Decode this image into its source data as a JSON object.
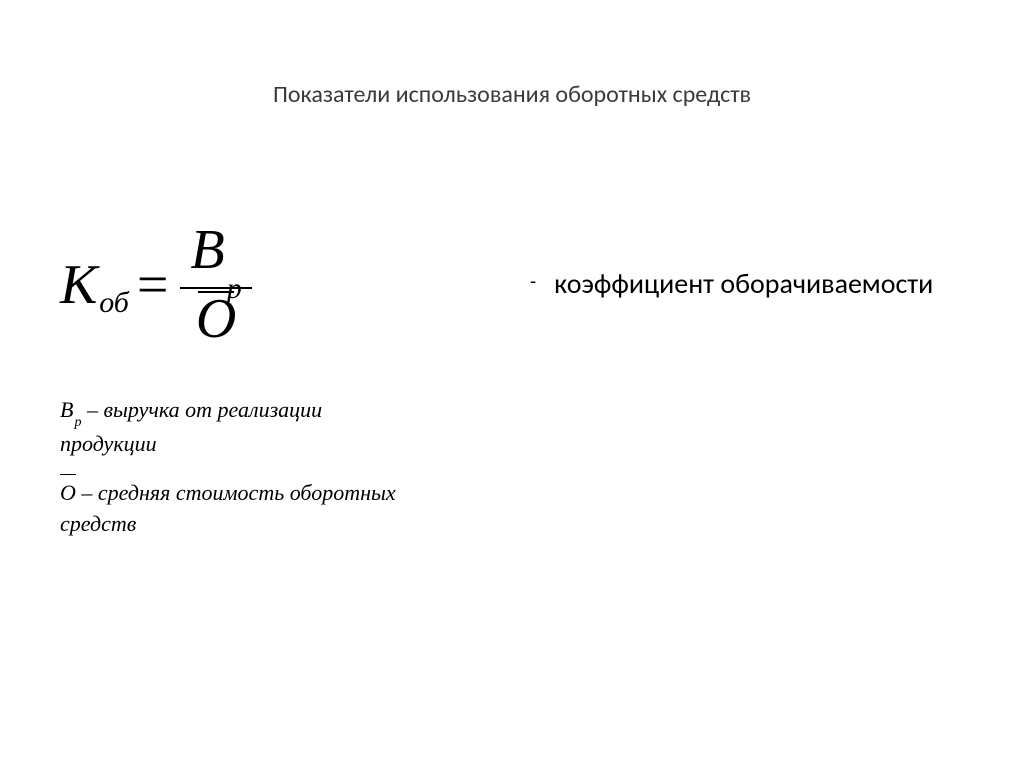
{
  "title": "Показатели использования оборотных средств",
  "formula": {
    "lhs_main": "К",
    "lhs_sub": "об",
    "equals": "=",
    "num_main": "В",
    "num_sub": "р",
    "den_main": "О"
  },
  "definitions": {
    "bp_var": "В",
    "bp_sub": "р",
    "bp_text": " – выручка от реализации продукции",
    "o_var": "О",
    "o_text": " – средняя стоимость оборотных средств"
  },
  "description": {
    "dash": "-",
    "text": "коэффициент оборачиваемости"
  },
  "colors": {
    "background": "#ffffff",
    "text": "#000000",
    "title": "#3a3a3a"
  }
}
